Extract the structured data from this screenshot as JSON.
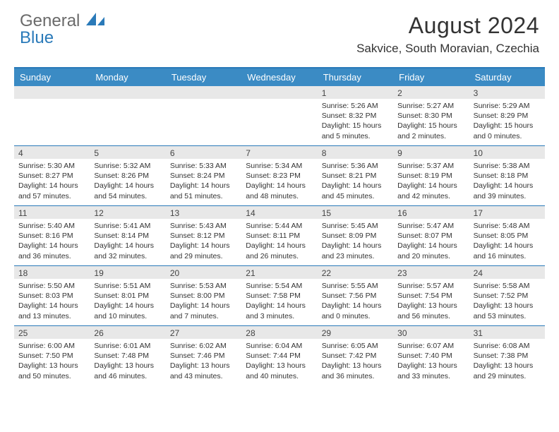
{
  "logo": {
    "text_gray": "General",
    "text_blue": "Blue",
    "shape_color": "#2a7ab9"
  },
  "title": "August 2024",
  "location": "Sakvice, South Moravian, Czechia",
  "header_bg": "#3b8bc4",
  "accent": "#2a7ab9",
  "daynum_bg": "#e8e8e8",
  "day_headers": [
    "Sunday",
    "Monday",
    "Tuesday",
    "Wednesday",
    "Thursday",
    "Friday",
    "Saturday"
  ],
  "weeks": [
    [
      {
        "n": "",
        "sr": "",
        "ss": "",
        "dl": ""
      },
      {
        "n": "",
        "sr": "",
        "ss": "",
        "dl": ""
      },
      {
        "n": "",
        "sr": "",
        "ss": "",
        "dl": ""
      },
      {
        "n": "",
        "sr": "",
        "ss": "",
        "dl": ""
      },
      {
        "n": "1",
        "sr": "Sunrise: 5:26 AM",
        "ss": "Sunset: 8:32 PM",
        "dl": "Daylight: 15 hours and 5 minutes."
      },
      {
        "n": "2",
        "sr": "Sunrise: 5:27 AM",
        "ss": "Sunset: 8:30 PM",
        "dl": "Daylight: 15 hours and 2 minutes."
      },
      {
        "n": "3",
        "sr": "Sunrise: 5:29 AM",
        "ss": "Sunset: 8:29 PM",
        "dl": "Daylight: 15 hours and 0 minutes."
      }
    ],
    [
      {
        "n": "4",
        "sr": "Sunrise: 5:30 AM",
        "ss": "Sunset: 8:27 PM",
        "dl": "Daylight: 14 hours and 57 minutes."
      },
      {
        "n": "5",
        "sr": "Sunrise: 5:32 AM",
        "ss": "Sunset: 8:26 PM",
        "dl": "Daylight: 14 hours and 54 minutes."
      },
      {
        "n": "6",
        "sr": "Sunrise: 5:33 AM",
        "ss": "Sunset: 8:24 PM",
        "dl": "Daylight: 14 hours and 51 minutes."
      },
      {
        "n": "7",
        "sr": "Sunrise: 5:34 AM",
        "ss": "Sunset: 8:23 PM",
        "dl": "Daylight: 14 hours and 48 minutes."
      },
      {
        "n": "8",
        "sr": "Sunrise: 5:36 AM",
        "ss": "Sunset: 8:21 PM",
        "dl": "Daylight: 14 hours and 45 minutes."
      },
      {
        "n": "9",
        "sr": "Sunrise: 5:37 AM",
        "ss": "Sunset: 8:19 PM",
        "dl": "Daylight: 14 hours and 42 minutes."
      },
      {
        "n": "10",
        "sr": "Sunrise: 5:38 AM",
        "ss": "Sunset: 8:18 PM",
        "dl": "Daylight: 14 hours and 39 minutes."
      }
    ],
    [
      {
        "n": "11",
        "sr": "Sunrise: 5:40 AM",
        "ss": "Sunset: 8:16 PM",
        "dl": "Daylight: 14 hours and 36 minutes."
      },
      {
        "n": "12",
        "sr": "Sunrise: 5:41 AM",
        "ss": "Sunset: 8:14 PM",
        "dl": "Daylight: 14 hours and 32 minutes."
      },
      {
        "n": "13",
        "sr": "Sunrise: 5:43 AM",
        "ss": "Sunset: 8:12 PM",
        "dl": "Daylight: 14 hours and 29 minutes."
      },
      {
        "n": "14",
        "sr": "Sunrise: 5:44 AM",
        "ss": "Sunset: 8:11 PM",
        "dl": "Daylight: 14 hours and 26 minutes."
      },
      {
        "n": "15",
        "sr": "Sunrise: 5:45 AM",
        "ss": "Sunset: 8:09 PM",
        "dl": "Daylight: 14 hours and 23 minutes."
      },
      {
        "n": "16",
        "sr": "Sunrise: 5:47 AM",
        "ss": "Sunset: 8:07 PM",
        "dl": "Daylight: 14 hours and 20 minutes."
      },
      {
        "n": "17",
        "sr": "Sunrise: 5:48 AM",
        "ss": "Sunset: 8:05 PM",
        "dl": "Daylight: 14 hours and 16 minutes."
      }
    ],
    [
      {
        "n": "18",
        "sr": "Sunrise: 5:50 AM",
        "ss": "Sunset: 8:03 PM",
        "dl": "Daylight: 14 hours and 13 minutes."
      },
      {
        "n": "19",
        "sr": "Sunrise: 5:51 AM",
        "ss": "Sunset: 8:01 PM",
        "dl": "Daylight: 14 hours and 10 minutes."
      },
      {
        "n": "20",
        "sr": "Sunrise: 5:53 AM",
        "ss": "Sunset: 8:00 PM",
        "dl": "Daylight: 14 hours and 7 minutes."
      },
      {
        "n": "21",
        "sr": "Sunrise: 5:54 AM",
        "ss": "Sunset: 7:58 PM",
        "dl": "Daylight: 14 hours and 3 minutes."
      },
      {
        "n": "22",
        "sr": "Sunrise: 5:55 AM",
        "ss": "Sunset: 7:56 PM",
        "dl": "Daylight: 14 hours and 0 minutes."
      },
      {
        "n": "23",
        "sr": "Sunrise: 5:57 AM",
        "ss": "Sunset: 7:54 PM",
        "dl": "Daylight: 13 hours and 56 minutes."
      },
      {
        "n": "24",
        "sr": "Sunrise: 5:58 AM",
        "ss": "Sunset: 7:52 PM",
        "dl": "Daylight: 13 hours and 53 minutes."
      }
    ],
    [
      {
        "n": "25",
        "sr": "Sunrise: 6:00 AM",
        "ss": "Sunset: 7:50 PM",
        "dl": "Daylight: 13 hours and 50 minutes."
      },
      {
        "n": "26",
        "sr": "Sunrise: 6:01 AM",
        "ss": "Sunset: 7:48 PM",
        "dl": "Daylight: 13 hours and 46 minutes."
      },
      {
        "n": "27",
        "sr": "Sunrise: 6:02 AM",
        "ss": "Sunset: 7:46 PM",
        "dl": "Daylight: 13 hours and 43 minutes."
      },
      {
        "n": "28",
        "sr": "Sunrise: 6:04 AM",
        "ss": "Sunset: 7:44 PM",
        "dl": "Daylight: 13 hours and 40 minutes."
      },
      {
        "n": "29",
        "sr": "Sunrise: 6:05 AM",
        "ss": "Sunset: 7:42 PM",
        "dl": "Daylight: 13 hours and 36 minutes."
      },
      {
        "n": "30",
        "sr": "Sunrise: 6:07 AM",
        "ss": "Sunset: 7:40 PM",
        "dl": "Daylight: 13 hours and 33 minutes."
      },
      {
        "n": "31",
        "sr": "Sunrise: 6:08 AM",
        "ss": "Sunset: 7:38 PM",
        "dl": "Daylight: 13 hours and 29 minutes."
      }
    ]
  ]
}
